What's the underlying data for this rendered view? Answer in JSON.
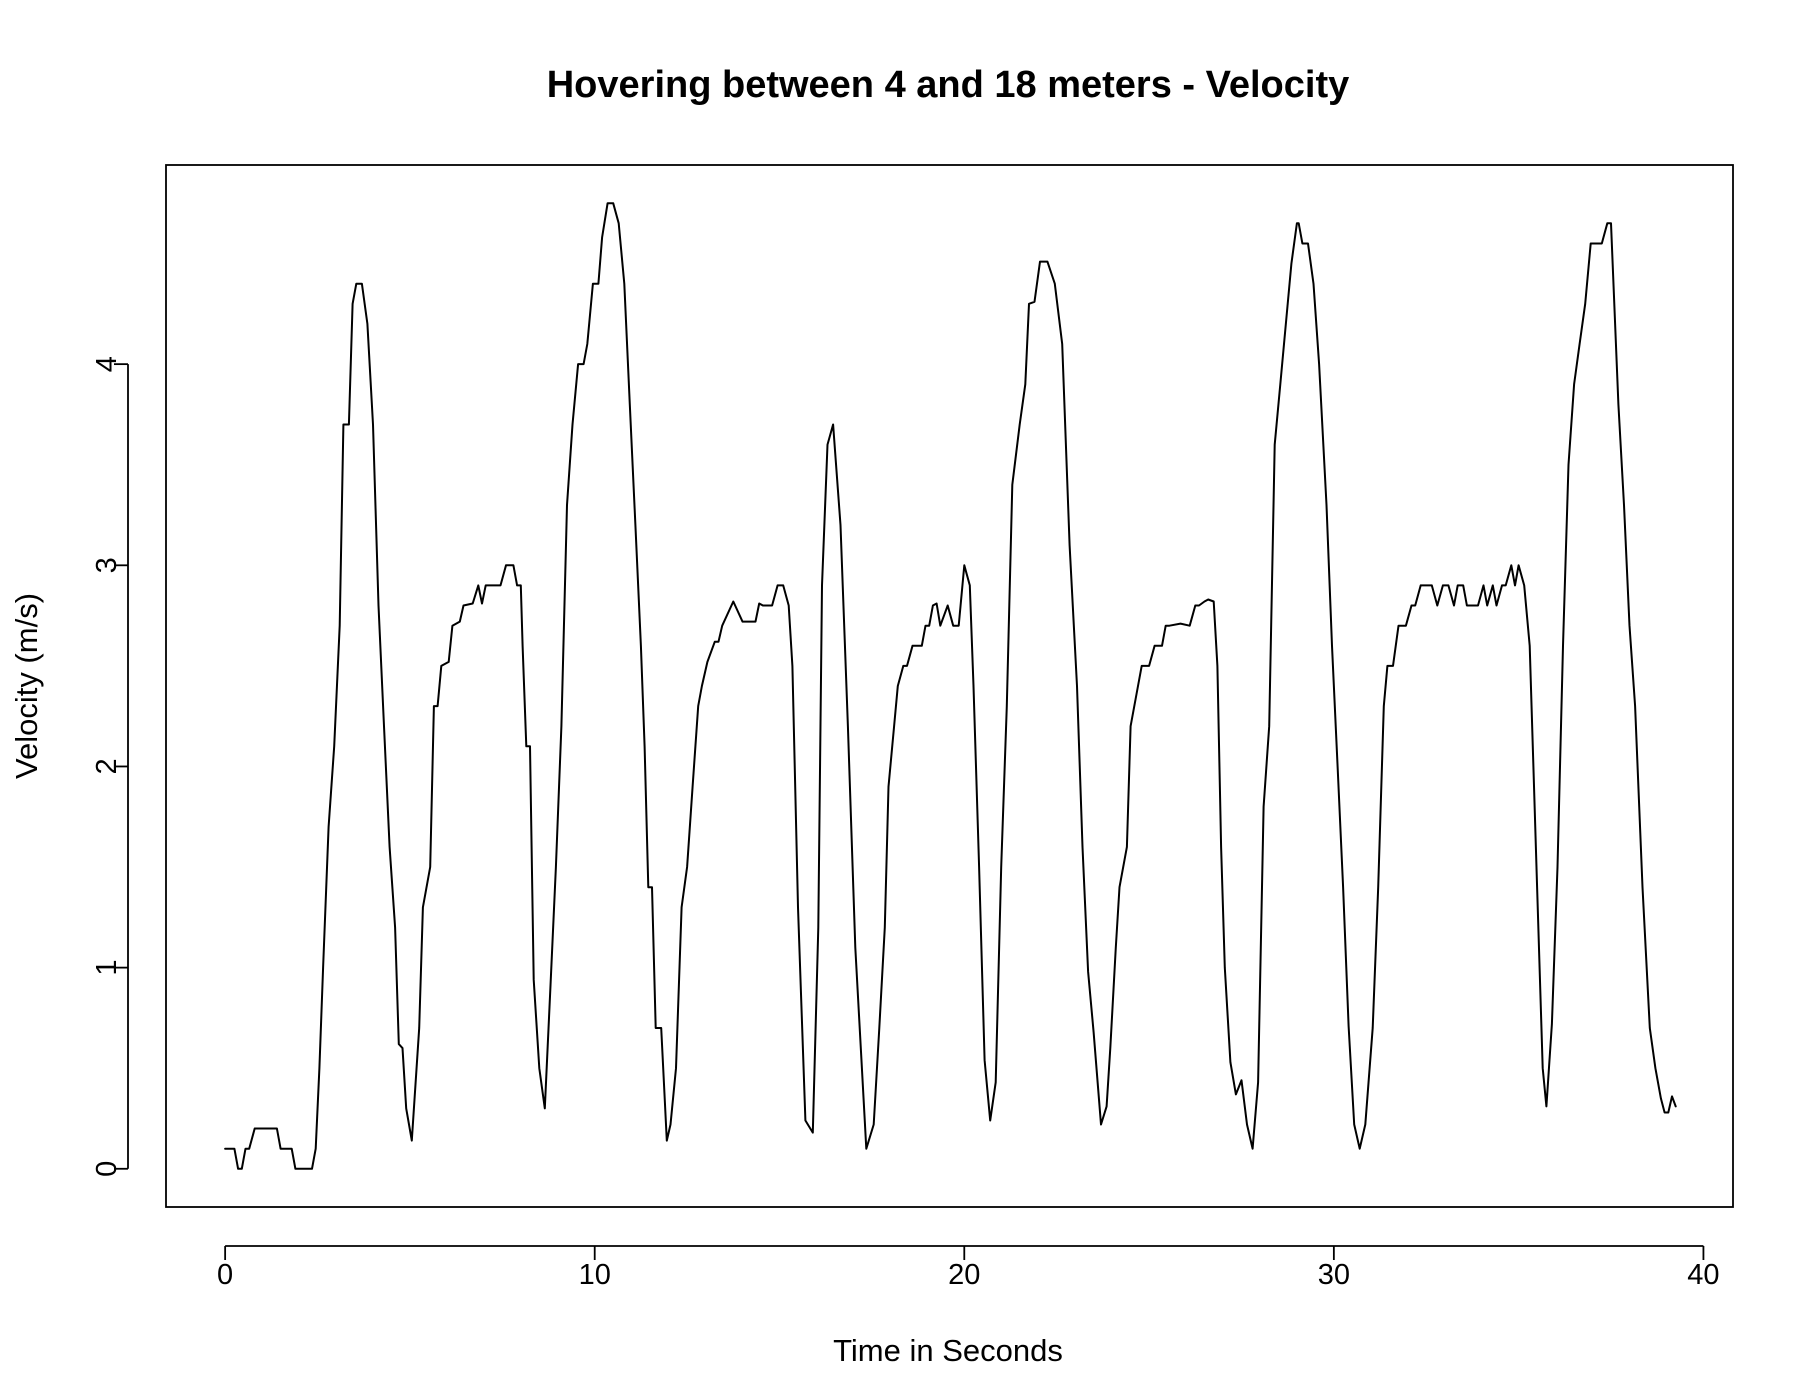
{
  "chart_data": {
    "type": "line",
    "title": "Hovering between 4 and 18 meters - Velocity",
    "xlabel": "Time in Seconds",
    "ylabel": "Velocity (m/s)",
    "xlim": [
      -1.6,
      40.8
    ],
    "ylim": [
      -0.19,
      4.99
    ],
    "xticks": [
      0,
      10,
      20,
      30,
      40
    ],
    "yticks": [
      0,
      1,
      2,
      3,
      4
    ],
    "grid": false,
    "line_color": "#000000",
    "series": [
      {
        "x": [
          0.0,
          0.25,
          0.35,
          0.45,
          0.55,
          0.65,
          0.8,
          1.0,
          1.2,
          1.4,
          1.5,
          1.6,
          1.8,
          1.9,
          2.1,
          2.25,
          2.35,
          2.45,
          2.55,
          2.65,
          2.8,
          2.95,
          3.1,
          3.2,
          3.35,
          3.45,
          3.55,
          3.7,
          3.85,
          4.0,
          4.15,
          4.3,
          4.45,
          4.6,
          4.7,
          4.8,
          4.9,
          5.05,
          5.25,
          5.35,
          5.55,
          5.65,
          5.75,
          5.85,
          6.05,
          6.15,
          6.35,
          6.45,
          6.7,
          6.85,
          6.95,
          7.05,
          7.3,
          7.45,
          7.6,
          7.8,
          7.9,
          8.0,
          8.05,
          8.15,
          8.25,
          8.35,
          8.5,
          8.65,
          8.8,
          8.95,
          9.1,
          9.25,
          9.4,
          9.55,
          9.7,
          9.8,
          9.95,
          10.1,
          10.2,
          10.35,
          10.5,
          10.65,
          10.8,
          10.95,
          11.1,
          11.25,
          11.35,
          11.45,
          11.55,
          11.65,
          11.8,
          11.95,
          12.05,
          12.2,
          12.35,
          12.5,
          12.65,
          12.8,
          12.9,
          13.05,
          13.25,
          13.35,
          13.45,
          13.75,
          14.0,
          14.35,
          14.45,
          14.55,
          14.65,
          14.8,
          14.95,
          15.1,
          15.25,
          15.35,
          15.5,
          15.7,
          15.9,
          16.05,
          16.15,
          16.3,
          16.45,
          16.65,
          16.85,
          17.05,
          17.2,
          17.35,
          17.55,
          17.7,
          17.85,
          17.95,
          18.1,
          18.2,
          18.35,
          18.45,
          18.6,
          18.85,
          18.95,
          19.05,
          19.15,
          19.25,
          19.35,
          19.55,
          19.7,
          19.85,
          20.0,
          20.15,
          20.25,
          20.4,
          20.55,
          20.7,
          20.85,
          21.0,
          21.15,
          21.3,
          21.5,
          21.65,
          21.75,
          21.9,
          22.05,
          22.25,
          22.45,
          22.65,
          22.85,
          23.05,
          23.2,
          23.35,
          23.5,
          23.7,
          23.85,
          23.95,
          24.1,
          24.2,
          24.4,
          24.5,
          24.7,
          24.8,
          25.0,
          25.15,
          25.35,
          25.45,
          25.55,
          25.85,
          26.1,
          26.25,
          26.35,
          26.5,
          26.6,
          26.75,
          26.85,
          26.95,
          27.05,
          27.2,
          27.35,
          27.5,
          27.65,
          27.8,
          27.95,
          28.1,
          28.25,
          28.4,
          28.55,
          28.65,
          28.75,
          28.85,
          29.0,
          29.05,
          29.15,
          29.3,
          29.45,
          29.6,
          29.8,
          29.95,
          30.1,
          30.25,
          30.4,
          30.55,
          30.7,
          30.85,
          31.05,
          31.2,
          31.35,
          31.45,
          31.6,
          31.75,
          31.85,
          31.95,
          32.1,
          32.2,
          32.35,
          32.45,
          32.65,
          32.8,
          32.95,
          33.1,
          33.25,
          33.35,
          33.5,
          33.6,
          33.75,
          33.9,
          34.05,
          34.15,
          34.3,
          34.4,
          34.55,
          34.65,
          34.8,
          34.9,
          35.0,
          35.15,
          35.3,
          35.5,
          35.65,
          35.75,
          35.9,
          36.05,
          36.2,
          36.35,
          36.5,
          36.65,
          36.8,
          36.95,
          37.1,
          37.25,
          37.4,
          37.5,
          37.7,
          37.85,
          38.0,
          38.15,
          38.35,
          38.55,
          38.7,
          38.85,
          38.95,
          39.05,
          39.15,
          39.25
        ],
        "y": [
          0.1,
          0.1,
          0.0,
          0.0,
          0.1,
          0.1,
          0.2,
          0.2,
          0.2,
          0.2,
          0.1,
          0.1,
          0.1,
          0.0,
          0.0,
          0.0,
          0.0,
          0.1,
          0.5,
          1.0,
          1.7,
          2.1,
          2.7,
          3.7,
          3.7,
          4.3,
          4.4,
          4.4,
          4.2,
          3.7,
          2.8,
          2.2,
          1.6,
          1.2,
          0.62,
          0.6,
          0.3,
          0.14,
          0.7,
          1.3,
          1.5,
          2.3,
          2.3,
          2.5,
          2.52,
          2.7,
          2.72,
          2.8,
          2.81,
          2.9,
          2.81,
          2.9,
          2.9,
          2.9,
          3.0,
          3.0,
          2.9,
          2.9,
          2.6,
          2.1,
          2.1,
          0.94,
          0.5,
          0.3,
          0.9,
          1.5,
          2.2,
          3.3,
          3.7,
          4.0,
          4.0,
          4.1,
          4.4,
          4.4,
          4.63,
          4.8,
          4.8,
          4.7,
          4.4,
          3.8,
          3.2,
          2.6,
          2.1,
          1.4,
          1.4,
          0.7,
          0.7,
          0.14,
          0.22,
          0.5,
          1.3,
          1.5,
          1.9,
          2.3,
          2.4,
          2.52,
          2.62,
          2.62,
          2.7,
          2.82,
          2.72,
          2.72,
          2.81,
          2.8,
          2.8,
          2.8,
          2.9,
          2.9,
          2.8,
          2.5,
          1.3,
          0.24,
          0.18,
          1.2,
          2.9,
          3.6,
          3.7,
          3.2,
          2.2,
          1.1,
          0.6,
          0.1,
          0.22,
          0.7,
          1.2,
          1.9,
          2.2,
          2.4,
          2.5,
          2.5,
          2.6,
          2.6,
          2.7,
          2.7,
          2.8,
          2.81,
          2.7,
          2.8,
          2.7,
          2.7,
          3.0,
          2.9,
          2.4,
          1.5,
          0.54,
          0.24,
          0.43,
          1.5,
          2.3,
          3.4,
          3.7,
          3.9,
          4.3,
          4.31,
          4.51,
          4.51,
          4.4,
          4.1,
          3.1,
          2.4,
          1.6,
          0.98,
          0.68,
          0.22,
          0.31,
          0.6,
          1.1,
          1.4,
          1.6,
          2.2,
          2.4,
          2.5,
          2.5,
          2.6,
          2.6,
          2.7,
          2.7,
          2.71,
          2.7,
          2.8,
          2.8,
          2.82,
          2.83,
          2.82,
          2.5,
          1.6,
          1.0,
          0.53,
          0.37,
          0.44,
          0.22,
          0.1,
          0.43,
          1.8,
          2.2,
          3.6,
          3.9,
          4.1,
          4.3,
          4.5,
          4.7,
          4.7,
          4.6,
          4.6,
          4.4,
          4.0,
          3.3,
          2.6,
          2.0,
          1.4,
          0.71,
          0.22,
          0.1,
          0.22,
          0.7,
          1.4,
          2.3,
          2.5,
          2.5,
          2.7,
          2.7,
          2.7,
          2.8,
          2.8,
          2.9,
          2.9,
          2.9,
          2.8,
          2.9,
          2.9,
          2.8,
          2.9,
          2.9,
          2.8,
          2.8,
          2.8,
          2.9,
          2.8,
          2.9,
          2.8,
          2.9,
          2.9,
          3.0,
          2.9,
          3.0,
          2.9,
          2.6,
          1.4,
          0.5,
          0.31,
          0.72,
          1.5,
          2.6,
          3.5,
          3.9,
          4.1,
          4.3,
          4.6,
          4.6,
          4.6,
          4.7,
          4.7,
          3.8,
          3.3,
          2.7,
          2.3,
          1.4,
          0.7,
          0.5,
          0.35,
          0.28,
          0.28,
          0.36,
          0.31
        ]
      }
    ]
  }
}
